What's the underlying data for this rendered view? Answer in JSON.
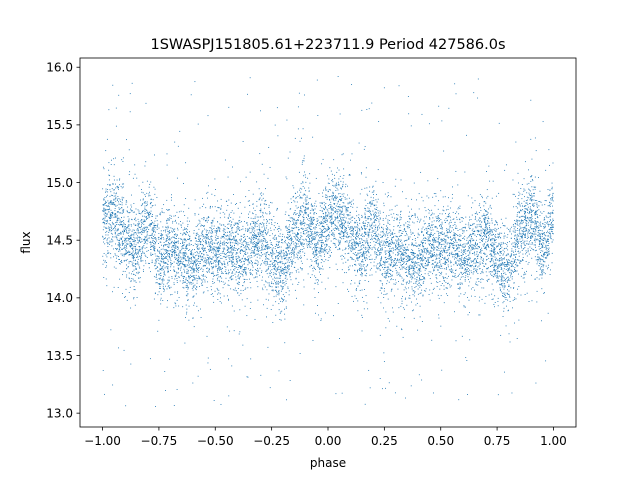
{
  "chart_data": {
    "type": "scatter",
    "title": "1SWASPJ151805.61+223711.9 Period 427586.0s",
    "xlabel": "phase",
    "ylabel": "flux",
    "xlim": [
      -1.1,
      1.1
    ],
    "ylim": [
      12.88,
      16.08
    ],
    "x_ticks": [
      -1.0,
      -0.75,
      -0.5,
      -0.25,
      0.0,
      0.25,
      0.5,
      0.75,
      1.0
    ],
    "x_tick_labels": [
      "−1.00",
      "−0.75",
      "−0.50",
      "−0.25",
      "0.00",
      "0.25",
      "0.50",
      "0.75",
      "1.00"
    ],
    "y_ticks": [
      13.0,
      13.5,
      14.0,
      14.5,
      15.0,
      15.5,
      16.0
    ],
    "y_tick_labels": [
      "13.0",
      "13.5",
      "14.0",
      "14.5",
      "15.0",
      "15.5",
      "16.0"
    ],
    "grid": false,
    "legend": "none",
    "marker_color": "#1f77b4",
    "series": [
      {
        "x_range": [
          -1.0,
          1.0
        ],
        "phase_profile": [
          [
            0.0,
            14.7
          ],
          [
            0.05,
            14.72
          ],
          [
            0.1,
            14.55
          ],
          [
            0.15,
            14.4
          ],
          [
            0.2,
            14.65
          ],
          [
            0.25,
            14.35
          ],
          [
            0.3,
            14.45
          ],
          [
            0.35,
            14.35
          ],
          [
            0.4,
            14.3
          ],
          [
            0.45,
            14.45
          ],
          [
            0.5,
            14.4
          ],
          [
            0.55,
            14.45
          ],
          [
            0.6,
            14.35
          ],
          [
            0.65,
            14.42
          ],
          [
            0.7,
            14.55
          ],
          [
            0.75,
            14.35
          ],
          [
            0.8,
            14.25
          ],
          [
            0.85,
            14.55
          ],
          [
            0.9,
            14.72
          ],
          [
            0.95,
            14.45
          ],
          [
            1.0,
            14.7
          ]
        ],
        "scatter_std": 0.17,
        "outlier_range": [
          13.05,
          15.95
        ],
        "approx_point_count": 9000
      }
    ]
  }
}
